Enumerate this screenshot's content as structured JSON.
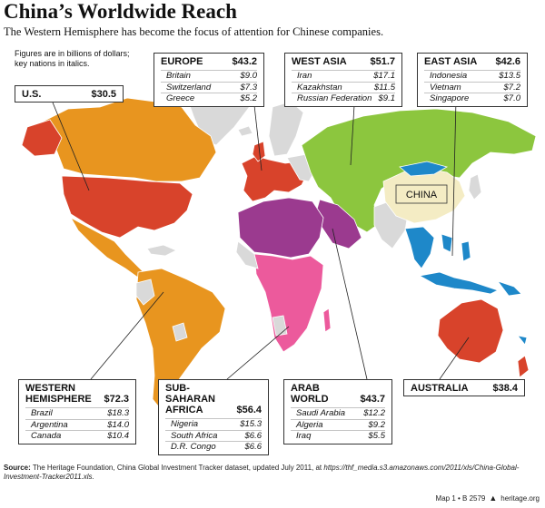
{
  "title": "China’s Worldwide Reach",
  "subtitle": "The Western Hemisphere has become the focus of attention for Chinese companies.",
  "note": {
    "line1": "Figures are in billions of dollars;",
    "line2": "key nations in italics."
  },
  "map_label": "CHINA",
  "colors": {
    "western_hemisphere": "#e8951f",
    "us": "#d8432b",
    "europe": "#d8432b",
    "west_asia": "#8cc63e",
    "east_asia": "#1e88c9",
    "australia": "#d8432b",
    "sub_saharan_africa": "#ec5a9c",
    "arab_world": "#9b3a8f",
    "china": "#f4ecc4",
    "other": "#d9d9d9"
  },
  "regions": {
    "us": {
      "name": "U.S.",
      "total": "$30.5"
    },
    "europe": {
      "name": "EUROPE",
      "total": "$43.2",
      "countries": [
        {
          "name": "Britain",
          "value": "$9.0"
        },
        {
          "name": "Switzerland",
          "value": "$7.3"
        },
        {
          "name": "Greece",
          "value": "$5.2"
        }
      ]
    },
    "west_asia": {
      "name": "WEST ASIA",
      "total": "$51.7",
      "countries": [
        {
          "name": "Iran",
          "value": "$17.1"
        },
        {
          "name": "Kazakhstan",
          "value": "$11.5"
        },
        {
          "name": "Russian Federation",
          "value": "$9.1"
        }
      ]
    },
    "east_asia": {
      "name": "EAST ASIA",
      "total": "$42.6",
      "countries": [
        {
          "name": "Indonesia",
          "value": "$13.5"
        },
        {
          "name": "Vietnam",
          "value": "$7.2"
        },
        {
          "name": "Singapore",
          "value": "$7.0"
        }
      ]
    },
    "western_hemisphere": {
      "name": "WESTERN\nHEMISPHERE",
      "total": "$72.3",
      "countries": [
        {
          "name": "Brazil",
          "value": "$18.3"
        },
        {
          "name": "Argentina",
          "value": "$14.0"
        },
        {
          "name": "Canada",
          "value": "$10.4"
        }
      ]
    },
    "sub_saharan_africa": {
      "name": "SUB-SAHARAN\nAFRICA",
      "total": "$56.4",
      "countries": [
        {
          "name": "Nigeria",
          "value": "$15.3"
        },
        {
          "name": "South Africa",
          "value": "$6.6"
        },
        {
          "name": "D.R. Congo",
          "value": "$6.6"
        }
      ]
    },
    "arab_world": {
      "name": "ARAB\nWORLD",
      "total": "$43.7",
      "countries": [
        {
          "name": "Saudi Arabia",
          "value": "$12.2"
        },
        {
          "name": "Algeria",
          "value": "$9.2"
        },
        {
          "name": "Iraq",
          "value": "$5.5"
        }
      ]
    },
    "australia": {
      "name": "AUSTRALIA",
      "total": "$38.4"
    }
  },
  "source": {
    "label": "Source:",
    "text": "The Heritage Foundation, China Global Investment Tracker dataset, updated July 2011, at",
    "url": "https://thf_media.s3.amazonaws.com/2011/xls/China-Global-Investment-Tracker2011.xls."
  },
  "footer": {
    "map_id": "Map 1 • B 2579",
    "site": "heritage.org"
  }
}
